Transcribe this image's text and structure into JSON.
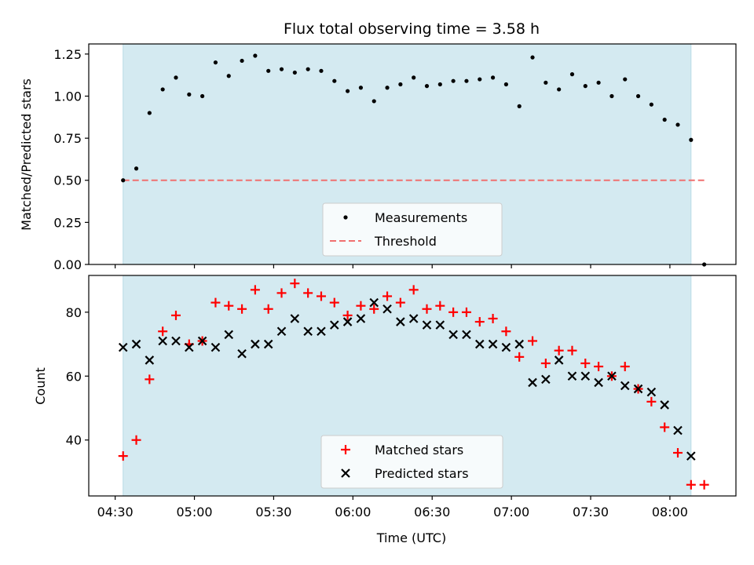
{
  "figure_title": "Flux total observing time = 3.58 h",
  "chart_data": [
    {
      "type": "scatter",
      "xlabel": "",
      "ylabel": "Matched/Predicted stars",
      "xlim": [
        "04:20",
        "08:25"
      ],
      "ylim": [
        0,
        1.31
      ],
      "yticks": [
        "0.00",
        "0.25",
        "0.50",
        "0.75",
        "1.00",
        "1.25"
      ],
      "shaded_span": {
        "from": "04:33",
        "to": "08:08",
        "color": "#d4eaf1"
      },
      "threshold": {
        "name": "Threshold",
        "value": 0.5,
        "from": "04:33",
        "to": "08:13",
        "color": "#f07070"
      },
      "legend": {
        "placement": "lower-center",
        "entries": [
          "Measurements",
          "Threshold"
        ]
      },
      "series": [
        {
          "name": "Measurements",
          "marker": "dot",
          "color": "#000000",
          "x": [
            "04:33",
            "04:38",
            "04:43",
            "04:48",
            "04:53",
            "04:58",
            "05:03",
            "05:08",
            "05:13",
            "05:18",
            "05:23",
            "05:28",
            "05:33",
            "05:38",
            "05:43",
            "05:48",
            "05:53",
            "05:58",
            "06:03",
            "06:08",
            "06:13",
            "06:18",
            "06:23",
            "06:28",
            "06:33",
            "06:38",
            "06:43",
            "06:48",
            "06:53",
            "06:58",
            "07:03",
            "07:08",
            "07:13",
            "07:18",
            "07:23",
            "07:28",
            "07:33",
            "07:38",
            "07:43",
            "07:48",
            "07:53",
            "07:58",
            "08:03",
            "08:08",
            "08:13"
          ],
          "y": [
            0.5,
            0.57,
            0.9,
            1.04,
            1.11,
            1.01,
            1.0,
            1.2,
            1.12,
            1.21,
            1.24,
            1.15,
            1.16,
            1.14,
            1.16,
            1.15,
            1.09,
            1.03,
            1.05,
            0.97,
            1.05,
            1.07,
            1.11,
            1.06,
            1.07,
            1.09,
            1.09,
            1.1,
            1.11,
            1.07,
            0.94,
            1.23,
            1.08,
            1.04,
            1.13,
            1.06,
            1.08,
            1.0,
            1.1,
            1.0,
            0.95,
            0.86,
            0.83,
            0.74,
            0.0
          ]
        }
      ]
    },
    {
      "type": "scatter",
      "xlabel": "Time (UTC)",
      "ylabel": "Count",
      "xlim": [
        "04:20",
        "08:25"
      ],
      "ylim": [
        22.5,
        91.5
      ],
      "xticks": [
        "04:30",
        "05:00",
        "05:30",
        "06:00",
        "06:30",
        "07:00",
        "07:30",
        "08:00"
      ],
      "yticks": [
        "40",
        "60",
        "80"
      ],
      "shaded_span": {
        "from": "04:33",
        "to": "08:08",
        "color": "#d4eaf1"
      },
      "legend": {
        "placement": "lower-center",
        "entries": [
          "Matched stars",
          "Predicted stars"
        ]
      },
      "series": [
        {
          "name": "Matched stars",
          "marker": "plus",
          "color": "#ff0000",
          "x": [
            "04:33",
            "04:38",
            "04:43",
            "04:48",
            "04:53",
            "04:58",
            "05:03",
            "05:08",
            "05:13",
            "05:18",
            "05:23",
            "05:28",
            "05:33",
            "05:38",
            "05:43",
            "05:48",
            "05:53",
            "05:58",
            "06:03",
            "06:08",
            "06:13",
            "06:18",
            "06:23",
            "06:28",
            "06:33",
            "06:38",
            "06:43",
            "06:48",
            "06:53",
            "06:58",
            "07:03",
            "07:08",
            "07:13",
            "07:18",
            "07:23",
            "07:28",
            "07:33",
            "07:38",
            "07:43",
            "07:48",
            "07:53",
            "07:58",
            "08:03",
            "08:08",
            "08:13"
          ],
          "y": [
            35,
            40,
            59,
            74,
            79,
            70,
            71,
            83,
            82,
            81,
            87,
            81,
            86,
            89,
            86,
            85,
            83,
            79,
            82,
            81,
            85,
            83,
            87,
            81,
            82,
            80,
            80,
            77,
            78,
            74,
            66,
            71,
            64,
            68,
            68,
            64,
            63,
            60,
            63,
            56,
            52,
            44,
            36,
            26,
            26
          ]
        },
        {
          "name": "Predicted stars",
          "marker": "x",
          "color": "#000000",
          "x": [
            "04:33",
            "04:38",
            "04:43",
            "04:48",
            "04:53",
            "04:58",
            "05:03",
            "05:08",
            "05:13",
            "05:18",
            "05:23",
            "05:28",
            "05:33",
            "05:38",
            "05:43",
            "05:48",
            "05:53",
            "05:58",
            "06:03",
            "06:08",
            "06:13",
            "06:18",
            "06:23",
            "06:28",
            "06:33",
            "06:38",
            "06:43",
            "06:48",
            "06:53",
            "06:58",
            "07:03",
            "07:08",
            "07:13",
            "07:18",
            "07:23",
            "07:28",
            "07:33",
            "07:38",
            "07:43",
            "07:48",
            "07:53",
            "07:58",
            "08:03",
            "08:08"
          ],
          "y": [
            69,
            70,
            65,
            71,
            71,
            69,
            71,
            69,
            73,
            67,
            70,
            70,
            74,
            78,
            74,
            74,
            76,
            77,
            78,
            83,
            81,
            77,
            78,
            76,
            76,
            73,
            73,
            70,
            70,
            69,
            70,
            58,
            59,
            65,
            60,
            60,
            58,
            60,
            57,
            56,
            55,
            51,
            43,
            35
          ]
        }
      ]
    }
  ]
}
